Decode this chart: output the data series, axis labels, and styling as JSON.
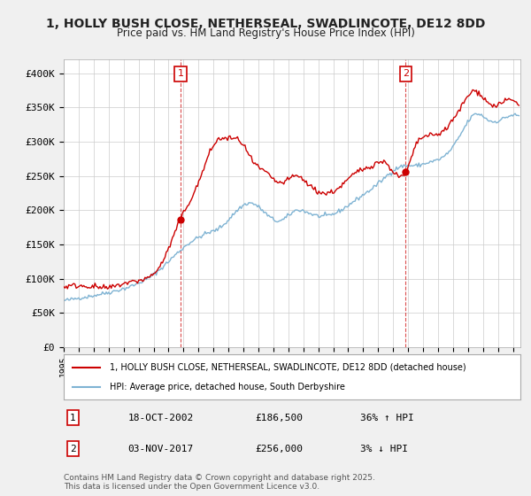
{
  "title_line1": "1, HOLLY BUSH CLOSE, NETHERSEAL, SWADLINCOTE, DE12 8DD",
  "title_line2": "Price paid vs. HM Land Registry's House Price Index (HPI)",
  "ylabel_ticks": [
    "£0",
    "£50K",
    "£100K",
    "£150K",
    "£200K",
    "£250K",
    "£300K",
    "£350K",
    "£400K"
  ],
  "ytick_vals": [
    0,
    50000,
    100000,
    150000,
    200000,
    250000,
    300000,
    350000,
    400000
  ],
  "ylim": [
    0,
    420000
  ],
  "xlim_start": 1995.0,
  "xlim_end": 2025.5,
  "xtick_years": [
    1995,
    1996,
    1997,
    1998,
    1999,
    2000,
    2001,
    2002,
    2003,
    2004,
    2005,
    2006,
    2007,
    2008,
    2009,
    2010,
    2011,
    2012,
    2013,
    2014,
    2015,
    2016,
    2017,
    2018,
    2019,
    2020,
    2021,
    2022,
    2023,
    2024,
    2025
  ],
  "sale1_x": 2002.8,
  "sale1_y": 186500,
  "sale1_label": "1",
  "sale2_x": 2017.84,
  "sale2_y": 256000,
  "sale2_label": "2",
  "legend_line1": "1, HOLLY BUSH CLOSE, NETHERSEAL, SWADLINCOTE, DE12 8DD (detached house)",
  "legend_line2": "HPI: Average price, detached house, South Derbyshire",
  "annotation1": [
    "1",
    "18-OCT-2002",
    "£186,500",
    "36% ↑ HPI"
  ],
  "annotation2": [
    "2",
    "03-NOV-2017",
    "£256,000",
    "3% ↓ HPI"
  ],
  "footer": "Contains HM Land Registry data © Crown copyright and database right 2025.\nThis data is licensed under the Open Government Licence v3.0.",
  "red_color": "#cc0000",
  "blue_color": "#7fb3d3",
  "bg_color": "#f0f0f0",
  "plot_bg": "#ffffff"
}
